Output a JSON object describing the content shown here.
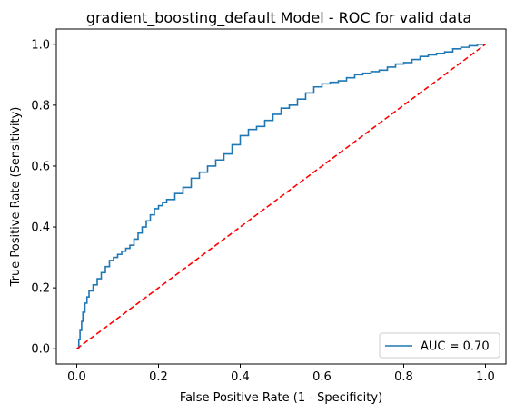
{
  "chart_data": {
    "type": "line",
    "title": "gradient_boosting_default Model - ROC for valid data",
    "xlabel": "False Positive Rate (1 - Specificity)",
    "ylabel": "True Positive Rate (Sensitivity)",
    "xlim": [
      -0.05,
      1.05
    ],
    "ylim": [
      -0.05,
      1.05
    ],
    "xticks": [
      "0.0",
      "0.2",
      "0.4",
      "0.6",
      "0.8",
      "1.0"
    ],
    "yticks": [
      "0.0",
      "0.2",
      "0.4",
      "0.6",
      "0.8",
      "1.0"
    ],
    "grid": false,
    "legend_position": "bottom-right",
    "series": [
      {
        "name": "AUC = 0.70",
        "color": "#1f77b4",
        "style": "solid",
        "x": [
          0.0,
          0.005,
          0.008,
          0.012,
          0.015,
          0.02,
          0.025,
          0.03,
          0.04,
          0.05,
          0.06,
          0.07,
          0.08,
          0.09,
          0.1,
          0.11,
          0.12,
          0.13,
          0.14,
          0.15,
          0.16,
          0.17,
          0.18,
          0.19,
          0.2,
          0.21,
          0.22,
          0.24,
          0.26,
          0.28,
          0.3,
          0.32,
          0.34,
          0.36,
          0.38,
          0.4,
          0.42,
          0.44,
          0.46,
          0.48,
          0.5,
          0.52,
          0.54,
          0.56,
          0.58,
          0.6,
          0.62,
          0.64,
          0.66,
          0.68,
          0.7,
          0.72,
          0.74,
          0.76,
          0.78,
          0.8,
          0.82,
          0.84,
          0.86,
          0.88,
          0.9,
          0.92,
          0.94,
          0.96,
          0.98,
          1.0
        ],
        "y": [
          0.0,
          0.03,
          0.06,
          0.09,
          0.12,
          0.15,
          0.17,
          0.19,
          0.21,
          0.23,
          0.25,
          0.27,
          0.29,
          0.3,
          0.31,
          0.32,
          0.33,
          0.34,
          0.36,
          0.38,
          0.4,
          0.42,
          0.44,
          0.46,
          0.47,
          0.48,
          0.49,
          0.51,
          0.53,
          0.56,
          0.58,
          0.6,
          0.62,
          0.64,
          0.67,
          0.7,
          0.72,
          0.73,
          0.75,
          0.77,
          0.79,
          0.8,
          0.82,
          0.84,
          0.86,
          0.87,
          0.875,
          0.88,
          0.89,
          0.9,
          0.905,
          0.91,
          0.915,
          0.925,
          0.935,
          0.94,
          0.95,
          0.96,
          0.965,
          0.97,
          0.975,
          0.985,
          0.99,
          0.995,
          1.0,
          1.0
        ]
      },
      {
        "name": "",
        "color": "#ff0000",
        "style": "dashed",
        "x": [
          0.0,
          1.0
        ],
        "y": [
          0.0,
          1.0
        ]
      }
    ]
  }
}
